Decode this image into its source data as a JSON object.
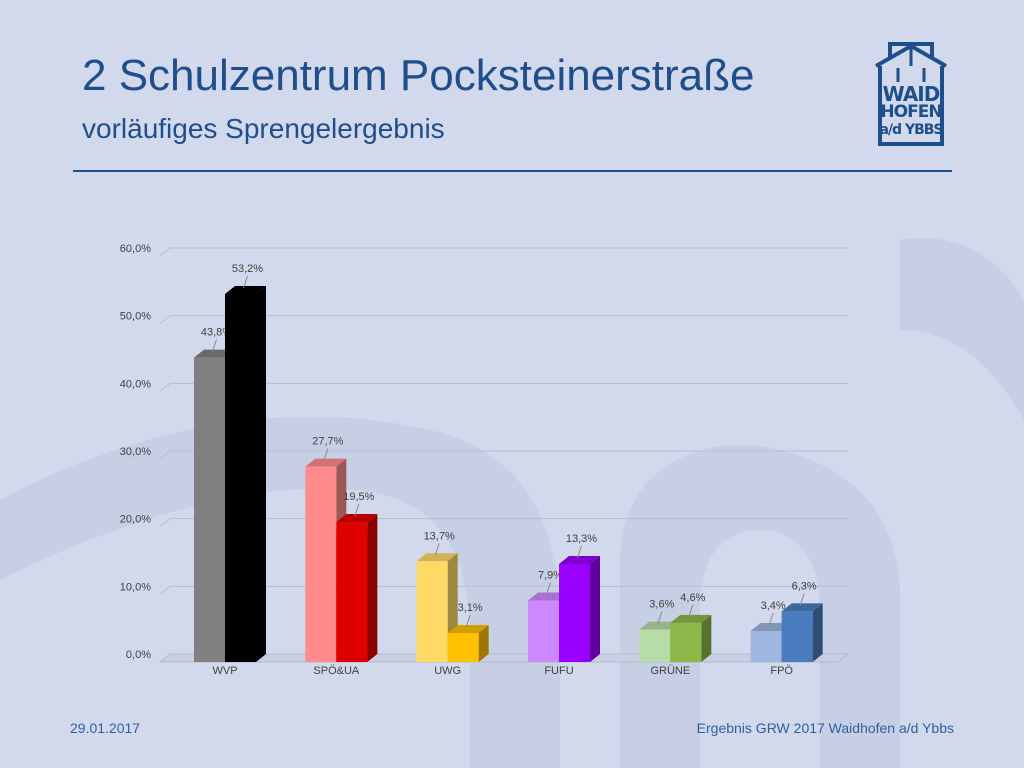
{
  "header": {
    "title": "2 Schulzentrum Pocksteinerstraße",
    "subtitle": "vorläufiges Sprengelergebnis"
  },
  "logo": {
    "line1": "WAID",
    "line2": "HOFEN",
    "line3": "a/d YBBS",
    "color": "#1f4e8c"
  },
  "footer": {
    "date": "29.01.2017",
    "source": "Ergebnis GRW 2017 Waidhofen a/d Ybbs"
  },
  "chart_data": {
    "type": "bar",
    "style": "3d-clustered",
    "categories": [
      "WVP",
      "SPÖ&UA",
      "UWG",
      "FUFU",
      "GRÜNE",
      "FPÖ"
    ],
    "series": [
      {
        "values": [
          43.8,
          27.7,
          13.7,
          7.9,
          3.6,
          3.4
        ],
        "labels": [
          "43,8%",
          "27,7%",
          "13,7%",
          "7,9%",
          "3,6%",
          "3,4%"
        ],
        "colors": [
          "#808080",
          "#ff8c8c",
          "#ffd966",
          "#cc88ff",
          "#b8dca8",
          "#9fb6e0"
        ]
      },
      {
        "values": [
          53.2,
          19.5,
          3.1,
          13.3,
          4.6,
          6.3
        ],
        "labels": [
          "53,2%",
          "19,5%",
          "3,1%",
          "13,3%",
          "4,6%",
          "6,3%"
        ],
        "colors": [
          "#000000",
          "#e00000",
          "#ffc000",
          "#9900ff",
          "#8cb84a",
          "#4a7dc0"
        ]
      }
    ],
    "ylim": [
      0,
      60
    ],
    "yticks": [
      "0,0%",
      "10,0%",
      "20,0%",
      "30,0%",
      "40,0%",
      "50,0%",
      "60,0%"
    ],
    "xlabel": "",
    "ylabel": "",
    "grid": true,
    "legend": "none"
  }
}
